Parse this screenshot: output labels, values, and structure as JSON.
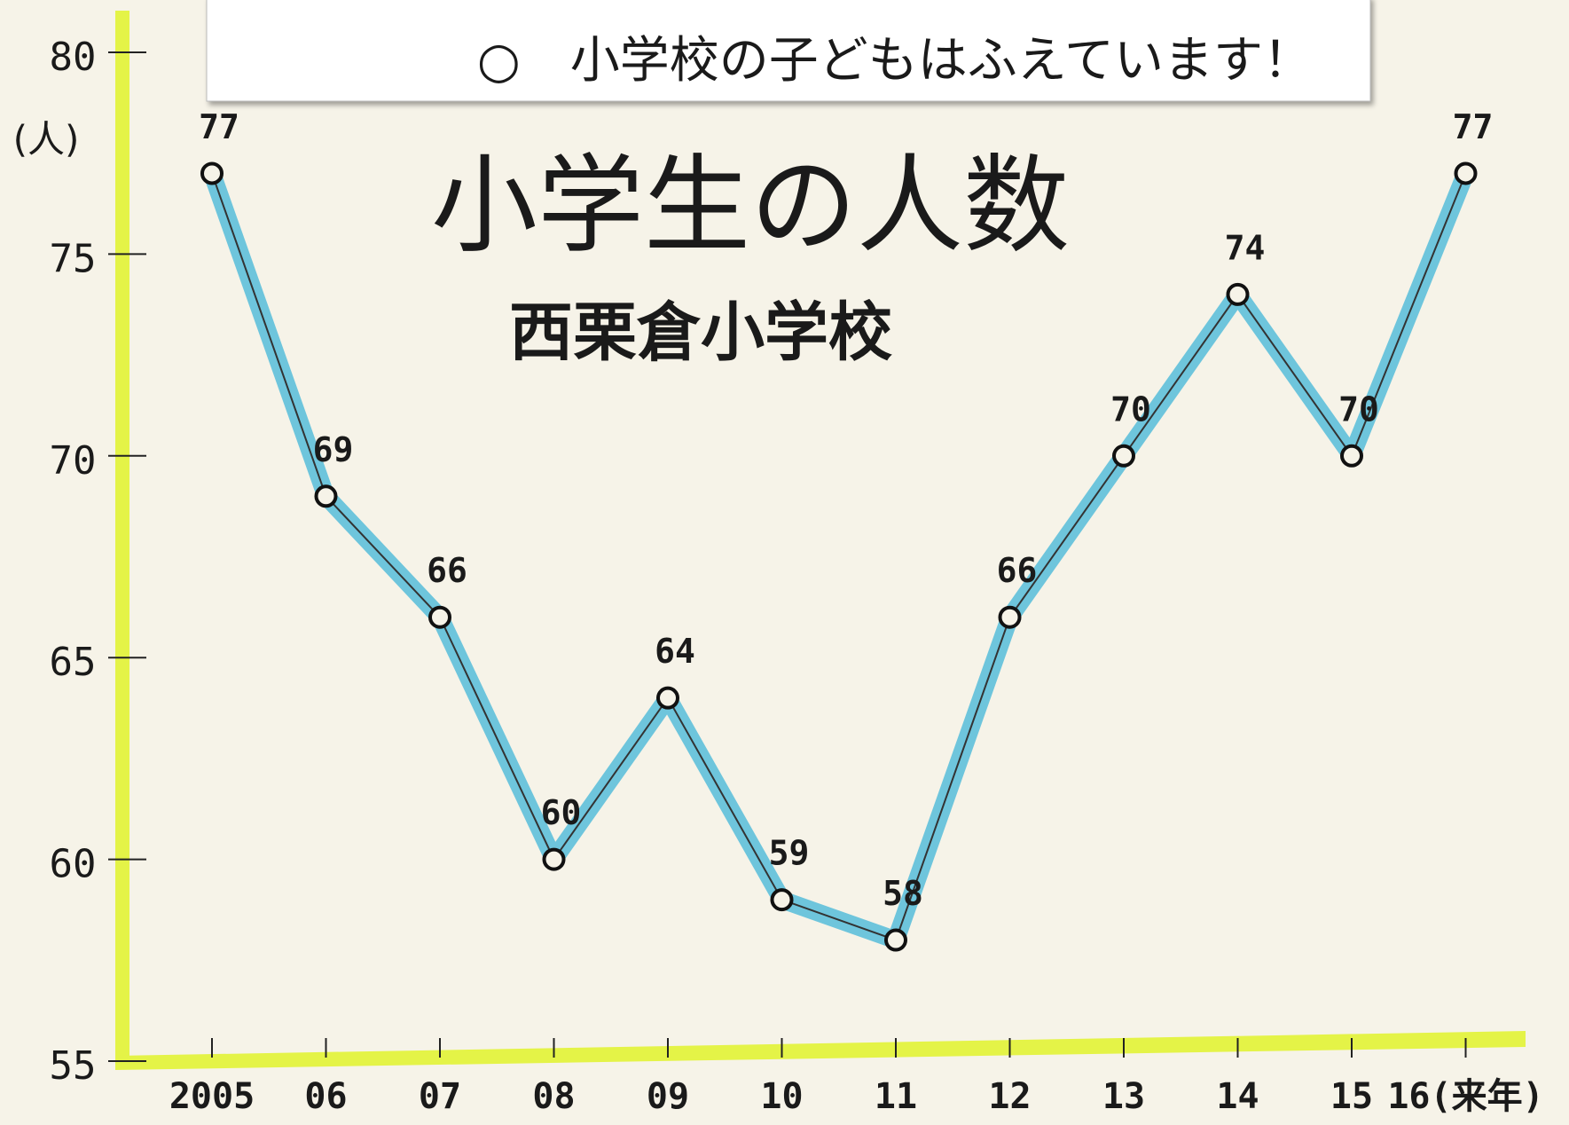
{
  "chart_data": {
    "type": "line",
    "annotation": "○　小学校の子どもはふえています！",
    "title": "小学生の人数",
    "subtitle": "西栗倉小学校",
    "y_label": "(人)",
    "categories": [
      "2005",
      "06",
      "07",
      "08",
      "09",
      "10",
      "11",
      "12",
      "13",
      "14",
      "15",
      "16(来年)"
    ],
    "values": [
      77,
      69,
      66,
      60,
      64,
      59,
      58,
      66,
      70,
      74,
      70,
      77
    ],
    "color": "#5fc0da",
    "ylim": [
      55,
      80
    ],
    "yticks": [
      55,
      60,
      65,
      70,
      75,
      80
    ],
    "grid": false
  }
}
